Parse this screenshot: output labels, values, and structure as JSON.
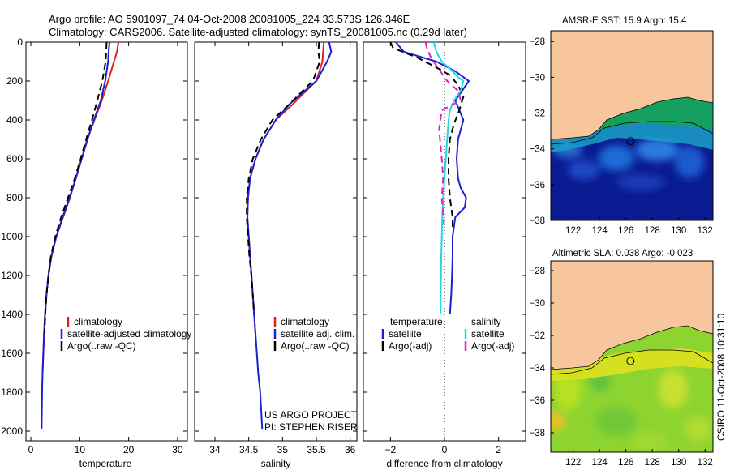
{
  "titles": {
    "line1": "Argo profile: AO 5901097_74 04-Oct-2008 20081005_224 33.573S 126.346E",
    "line2": "Climatology: CARS2006. Satellite-adjusted climatology: synTS_20081005.nc (0.29d later)"
  },
  "side_label": "CSIRO 11-Oct-2008 10:31:10",
  "annotation": {
    "line1": "US ARGO PROJECT",
    "line2": "PI: STEPHEN RISER"
  },
  "colors": {
    "climatology": "#e02020",
    "satellite": "#1a22d0",
    "argo": "#000000",
    "salinity_satellite": "#22d8e0",
    "salinity_argo": "#e020d0",
    "land": "#f8c69c",
    "sst_shelf": "#16a060",
    "sst_deep": "#0a1a90",
    "sla_main": "#8ed430",
    "sla_shelf": "#d4e020"
  },
  "chart_data": [
    {
      "type": "line",
      "name": "temperature-profile",
      "xlabel": "temperature",
      "ylabel": "",
      "xlim": [
        -1,
        32
      ],
      "ylim": [
        2050,
        0
      ],
      "xticks": [
        0,
        10,
        20,
        30
      ],
      "yticks": [
        0,
        200,
        400,
        600,
        800,
        1000,
        1200,
        1400,
        1600,
        1800,
        2000
      ],
      "legend": {
        "placement": "bottom-right",
        "entries": [
          "climatology",
          "satellite-adjusted climatology",
          "Argo(..raw -QC)"
        ]
      },
      "series": [
        {
          "name": "climatology",
          "color_key": "climatology",
          "dash": "solid",
          "x": [
            17.9,
            17.6,
            17.0,
            15.8,
            14.5,
            13.0,
            11.5,
            10.4,
            9.2,
            8.0,
            6.6,
            5.2,
            4.2,
            3.6,
            3.2,
            2.9,
            2.7,
            2.55,
            2.4
          ],
          "y": [
            0,
            50,
            100,
            200,
            300,
            400,
            500,
            600,
            700,
            800,
            900,
            1000,
            1100,
            1200,
            1300,
            1400,
            1500,
            1600,
            1700
          ]
        },
        {
          "name": "satellite-adjusted climatology",
          "color_key": "satellite",
          "dash": "solid",
          "x": [
            16.1,
            15.9,
            15.8,
            15.2,
            14.3,
            12.9,
            11.6,
            10.4,
            9.2,
            7.9,
            6.5,
            5.2,
            4.2,
            3.6,
            3.2,
            2.9,
            2.7,
            2.55,
            2.4,
            2.3,
            2.25,
            2.2
          ],
          "y": [
            0,
            50,
            100,
            200,
            300,
            400,
            500,
            600,
            700,
            800,
            900,
            1000,
            1100,
            1200,
            1300,
            1400,
            1500,
            1600,
            1700,
            1800,
            1900,
            1990
          ]
        },
        {
          "name": "Argo(..raw -QC)",
          "color_key": "argo",
          "dash": "dashed",
          "x": [
            15.5,
            15.4,
            15.3,
            14.6,
            13.6,
            12.5,
            11.3,
            10.2,
            9.0,
            7.6,
            6.2,
            5.0,
            4.1,
            3.6,
            3.2,
            2.95,
            2.8
          ],
          "y": [
            0,
            50,
            100,
            200,
            300,
            400,
            500,
            600,
            700,
            800,
            900,
            1000,
            1100,
            1200,
            1300,
            1400,
            1500
          ]
        }
      ]
    },
    {
      "type": "line",
      "name": "salinity-profile",
      "xlabel": "salinity",
      "ylabel": "",
      "xlim": [
        33.7,
        36.1
      ],
      "ylim": [
        2050,
        0
      ],
      "xticks": [
        34,
        34.5,
        35,
        35.5,
        36
      ],
      "legend": {
        "placement": "bottom-right",
        "entries": [
          "climatology",
          "satellite adj. clim.",
          "Argo(..raw -QC)"
        ]
      },
      "series": [
        {
          "name": "climatology",
          "color_key": "climatology",
          "dash": "solid",
          "x": [
            35.61,
            35.59,
            35.5,
            35.35,
            35.15,
            34.9,
            34.72,
            34.6,
            34.52,
            34.49,
            34.48,
            34.5,
            34.52,
            34.54,
            34.56,
            34.58,
            34.6
          ],
          "y": [
            0,
            100,
            200,
            250,
            320,
            400,
            500,
            600,
            700,
            800,
            900,
            1000,
            1100,
            1200,
            1300,
            1400,
            1500
          ]
        },
        {
          "name": "satellite adj. clim.",
          "color_key": "satellite",
          "dash": "solid",
          "x": [
            35.69,
            35.72,
            35.66,
            35.5,
            35.33,
            35.1,
            34.9,
            34.72,
            34.6,
            34.52,
            34.49,
            34.48,
            34.5,
            34.52,
            34.54,
            34.56,
            34.58,
            34.6,
            34.62,
            34.64,
            34.67,
            34.7
          ],
          "y": [
            0,
            50,
            100,
            200,
            250,
            320,
            400,
            500,
            600,
            700,
            800,
            900,
            1000,
            1100,
            1200,
            1300,
            1400,
            1500,
            1600,
            1700,
            1800,
            1990
          ]
        },
        {
          "name": "Argo(..raw -QC)",
          "color_key": "argo",
          "dash": "dashed",
          "x": [
            35.54,
            35.53,
            35.55,
            35.45,
            35.3,
            35.1,
            34.85,
            34.68,
            34.56,
            34.5,
            34.47,
            34.47,
            34.49,
            34.51,
            34.54,
            34.56,
            34.58
          ],
          "y": [
            0,
            50,
            100,
            200,
            250,
            320,
            400,
            500,
            600,
            700,
            800,
            900,
            1000,
            1100,
            1200,
            1300,
            1400
          ]
        }
      ]
    },
    {
      "type": "line",
      "name": "difference-profile",
      "xlabel": "difference from climatology",
      "ylabel": "",
      "xlim": [
        -3,
        3
      ],
      "ylim": [
        2050,
        0
      ],
      "xticks": [
        -2,
        0,
        2
      ],
      "legend": {
        "placement": "bottom-right",
        "entries": [
          "temperature",
          "satellite",
          "Argo(-adj)",
          "salinity",
          "satellite",
          "Argo(-adj)"
        ]
      },
      "series": [
        {
          "name": "temperature satellite",
          "color_key": "satellite",
          "dash": "solid",
          "x": [
            -1.8,
            -1.5,
            -0.3,
            0.4,
            0.7,
            0.9,
            0.65,
            0.4,
            0.55,
            0.7,
            0.5,
            0.45,
            0.5,
            0.6,
            0.8,
            0.75,
            0.4,
            0.3,
            0.3,
            0.28,
            0.25,
            0.2
          ],
          "y": [
            0,
            50,
            100,
            150,
            180,
            200,
            250,
            300,
            350,
            400,
            500,
            600,
            700,
            750,
            800,
            850,
            900,
            1000,
            1100,
            1200,
            1300,
            1400
          ]
        },
        {
          "name": "temperature Argo(-adj)",
          "color_key": "argo",
          "dash": "dashed",
          "x": [
            -2.0,
            -1.9,
            -1.0,
            -0.3,
            0.2,
            0.5,
            0.7,
            0.55,
            0.35,
            0.2,
            0.15,
            0.15,
            0.2,
            0.25,
            0.3,
            0.3
          ],
          "y": [
            0,
            30,
            80,
            130,
            170,
            220,
            280,
            350,
            420,
            500,
            600,
            700,
            800,
            850,
            900,
            960
          ]
        },
        {
          "name": "salinity satellite",
          "color_key": "salinity_satellite",
          "dash": "solid",
          "x": [
            -0.4,
            -0.3,
            -0.1,
            0.3,
            0.5,
            0.7,
            0.6,
            0.35,
            0.2,
            0.15,
            0.1,
            0.05,
            0.0,
            -0.05,
            -0.08,
            -0.1,
            -0.12,
            -0.13,
            -0.14,
            -0.15
          ],
          "y": [
            0,
            50,
            100,
            150,
            180,
            200,
            250,
            300,
            350,
            400,
            500,
            600,
            700,
            800,
            900,
            1000,
            1100,
            1200,
            1300,
            1400
          ]
        },
        {
          "name": "salinity Argo(-adj)",
          "color_key": "salinity_argo",
          "dash": "dashed",
          "x": [
            -0.7,
            -0.65,
            -0.5,
            -0.3,
            -0.1,
            0.1,
            0.5,
            0.6,
            -0.1,
            -0.2,
            -0.1,
            -0.05,
            -0.1,
            -0.05,
            0.0
          ],
          "y": [
            0,
            30,
            80,
            120,
            160,
            200,
            250,
            300,
            350,
            450,
            600,
            700,
            800,
            880,
            960
          ]
        }
      ]
    },
    {
      "type": "heatmap",
      "name": "sst-map",
      "title": "AMSR-E SST: 15.9 Argo: 15.4",
      "xlim": [
        120.3,
        132.6
      ],
      "ylim": [
        -38,
        -27.4
      ],
      "xticks": [
        122,
        124,
        126,
        128,
        130,
        132
      ],
      "yticks": [
        -28,
        -30,
        -32,
        -34,
        -36,
        -38
      ],
      "marker": {
        "lon": 126.346,
        "lat": -33.573
      }
    },
    {
      "type": "heatmap",
      "name": "sla-map",
      "title": "Altimetric SLA: 0.038 Argo: -0.023",
      "xlim": [
        120.3,
        132.6
      ],
      "ylim": [
        -39.2,
        -27.4
      ],
      "xticks": [
        122,
        124,
        126,
        128,
        130,
        132
      ],
      "yticks": [
        -28,
        -30,
        -32,
        -34,
        -36,
        -38
      ],
      "marker": {
        "lon": 126.346,
        "lat": -33.573
      }
    }
  ]
}
